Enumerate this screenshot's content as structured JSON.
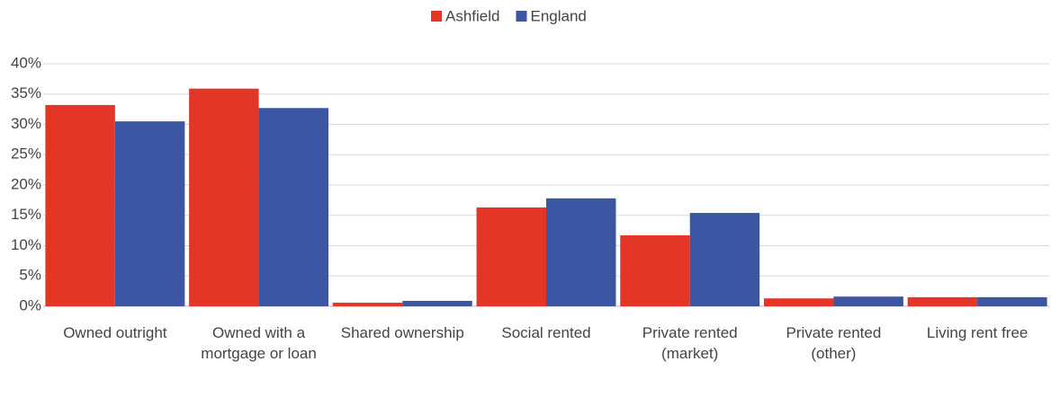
{
  "chart_data": {
    "type": "bar",
    "categories": [
      "Owned outright",
      "Owned with a mortgage or loan",
      "Shared ownership",
      "Social rented",
      "Private rented (market)",
      "Private rented (other)",
      "Living rent free"
    ],
    "series": [
      {
        "name": "Ashfield",
        "color": "#e33626",
        "values": [
          33.2,
          35.9,
          0.6,
          16.3,
          11.7,
          1.3,
          1.5
        ]
      },
      {
        "name": "England",
        "color": "#3c56a4",
        "values": [
          30.5,
          32.7,
          0.9,
          17.8,
          15.4,
          1.6,
          1.5
        ]
      }
    ],
    "ylim": [
      0,
      40
    ],
    "yticks": [
      {
        "value": 0,
        "label": "0%"
      },
      {
        "value": 5,
        "label": "5%"
      },
      {
        "value": 10,
        "label": "10%"
      },
      {
        "value": 15,
        "label": "15%"
      },
      {
        "value": 20,
        "label": "20%"
      },
      {
        "value": 25,
        "label": "25%"
      },
      {
        "value": 30,
        "label": "30%"
      },
      {
        "value": 35,
        "label": "35%"
      },
      {
        "value": 40,
        "label": "40%"
      }
    ],
    "grid": true,
    "legend": "top"
  }
}
